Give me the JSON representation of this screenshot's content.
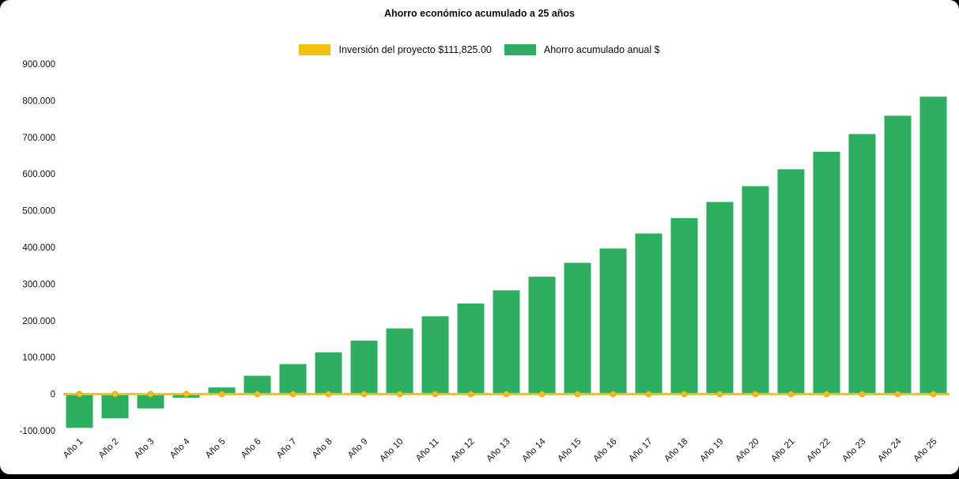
{
  "title": "Ahorro económico acumulado a 25 años",
  "legend": {
    "investment_label": "Inversión del proyecto $111,825.00",
    "savings_label": "Ahorro acumulado anual $"
  },
  "colors": {
    "bar_green": "#2eae60",
    "line_yellow": "#f3c211",
    "marker_edge": "#dfa516",
    "text": "#111111",
    "chart_background": "#ffffff",
    "page_background": "#000000"
  },
  "chart_data": {
    "type": "bar",
    "title": "Ahorro económico acumulado a 25 años",
    "categories": [
      "Año 1",
      "Año 2",
      "Año 3",
      "Año 4",
      "Año 5",
      "Año 6",
      "Año 7",
      "Año 8",
      "Año 9",
      "Año 10",
      "Año 11",
      "Año 12",
      "Año 13",
      "Año 14",
      "Año 15",
      "Año 16",
      "Año 17",
      "Año 18",
      "Año 19",
      "Año 20",
      "Año 21",
      "Año 22",
      "Año 23",
      "Año 24",
      "Año 25"
    ],
    "series": [
      {
        "name": "Ahorro acumulado anual $",
        "type": "bar",
        "color": "#2eae60",
        "values": [
          -92000,
          -66000,
          -39000,
          -10000,
          18000,
          50000,
          82000,
          114000,
          146000,
          179000,
          212000,
          247000,
          283000,
          320000,
          358000,
          397000,
          438000,
          480000,
          524000,
          567000,
          613000,
          661000,
          709000,
          759000,
          811000
        ]
      },
      {
        "name": "Inversión del proyecto $111,825.00",
        "type": "line",
        "color": "#f3c211",
        "marker_edge_color": "#dfa516",
        "values": [
          0,
          0,
          0,
          0,
          0,
          0,
          0,
          0,
          0,
          0,
          0,
          0,
          0,
          0,
          0,
          0,
          0,
          0,
          0,
          0,
          0,
          0,
          0,
          0,
          0
        ]
      }
    ],
    "ylim": [
      -100000,
      900000
    ],
    "y_ticks": [
      900000,
      800000,
      700000,
      600000,
      500000,
      400000,
      300000,
      200000,
      100000,
      0,
      -100000
    ],
    "y_tick_labels": [
      "900.000",
      "800.000",
      "700.000",
      "600.000",
      "500.000",
      "400.000",
      "300.000",
      "200.000",
      "100.000",
      "0",
      "-100.000"
    ],
    "xlabel": "",
    "ylabel": "",
    "grid": false,
    "legend_position": "top"
  }
}
